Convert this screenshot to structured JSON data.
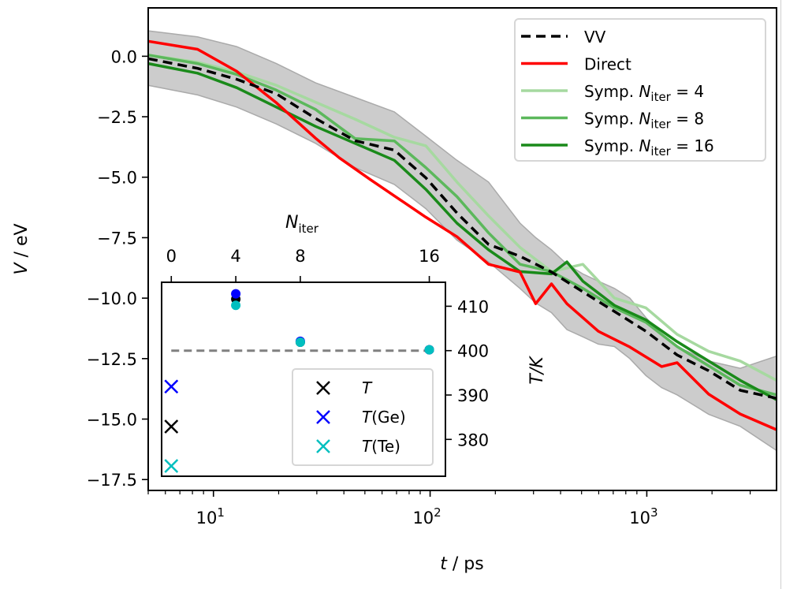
{
  "chart_data": {
    "type": "line",
    "xscale": "log",
    "xlabel_italic": "t",
    "xlabel_rest": " / ps",
    "ylabel_italic": "V",
    "ylabel_rest": " / eV",
    "xlim": [
      5.0,
      3970
    ],
    "ylim": [
      -17.95,
      2.0
    ],
    "xticks": [
      {
        "value": 10,
        "base": "10",
        "exp": "1"
      },
      {
        "value": 100,
        "base": "10",
        "exp": "2"
      },
      {
        "value": 1000,
        "base": "10",
        "exp": "3"
      }
    ],
    "yticks": [
      {
        "value": 0.0,
        "label": "0.0"
      },
      {
        "value": -2.5,
        "label": "−2.5"
      },
      {
        "value": -5.0,
        "label": "−5.0"
      },
      {
        "value": -7.5,
        "label": "−7.5"
      },
      {
        "value": -10.0,
        "label": "−10.0"
      },
      {
        "value": -12.5,
        "label": "−12.5"
      },
      {
        "value": -15.0,
        "label": "−15.0"
      },
      {
        "value": -17.5,
        "label": "−17.5"
      }
    ],
    "band": {
      "name": "VV spread",
      "color": "#cccccc",
      "t": [
        5.0,
        8.45,
        12.8,
        19.5,
        29.6,
        45.0,
        68.4,
        95.5,
        133,
        186,
        260,
        307,
        363,
        428,
        507,
        597,
        709,
        835,
        991,
        1170,
        1380,
        1930,
        2700,
        3970
      ],
      "upper": [
        1.05,
        0.8,
        0.4,
        -0.3,
        -1.1,
        -1.7,
        -2.3,
        -3.3,
        -4.3,
        -5.2,
        -6.9,
        -7.5,
        -8.0,
        -8.6,
        -9.0,
        -9.3,
        -9.6,
        -10.0,
        -10.8,
        -11.5,
        -12.0,
        -12.6,
        -12.9,
        -12.4
      ],
      "lower": [
        -1.2,
        -1.6,
        -2.1,
        -2.8,
        -3.6,
        -4.6,
        -5.3,
        -6.3,
        -7.6,
        -8.5,
        -9.6,
        -10.2,
        -10.6,
        -11.3,
        -11.6,
        -11.9,
        -12.0,
        -12.5,
        -13.2,
        -13.7,
        -14.0,
        -14.8,
        -15.3,
        -16.3
      ]
    },
    "series": [
      {
        "name": "VV",
        "color": "#000000",
        "dash": true,
        "opacity": 1,
        "t": [
          5.0,
          8.45,
          12.8,
          19.5,
          29.6,
          45.0,
          68.4,
          95.5,
          133,
          186,
          260,
          363,
          507,
          709,
          991,
          1380,
          1930,
          2700,
          3970
        ],
        "v": [
          -0.1,
          -0.5,
          -0.95,
          -1.55,
          -2.57,
          -3.49,
          -3.88,
          -5.02,
          -6.48,
          -7.78,
          -8.27,
          -8.92,
          -9.74,
          -10.55,
          -11.37,
          -12.35,
          -13.0,
          -13.81,
          -14.14
        ]
      },
      {
        "name": "Direct",
        "color": "#ff0000",
        "dash": false,
        "opacity": 1,
        "t": [
          5.0,
          8.45,
          12.8,
          19.5,
          29.6,
          38.1,
          53.2,
          68.4,
          95.5,
          133,
          186,
          260,
          307,
          363,
          428,
          597,
          835,
          1170,
          1380,
          1930,
          2700,
          3970
        ],
        "v": [
          0.62,
          0.29,
          -0.62,
          -1.92,
          -3.39,
          -4.2,
          -5.11,
          -5.77,
          -6.65,
          -7.46,
          -8.6,
          -8.92,
          -10.23,
          -9.41,
          -10.23,
          -11.37,
          -12.02,
          -12.83,
          -12.67,
          -13.97,
          -14.79,
          -15.44
        ]
      },
      {
        "name": "Symp. N_iter = 4",
        "color": "#a6d9a0",
        "dash": false,
        "opacity": 1,
        "t": [
          5.0,
          8.45,
          12.8,
          19.5,
          29.6,
          45.0,
          68.4,
          95.5,
          133,
          186,
          260,
          363,
          507,
          709,
          991,
          1380,
          1930,
          2700,
          3970
        ],
        "v": [
          0.05,
          -0.25,
          -0.65,
          -1.2,
          -1.9,
          -2.6,
          -3.35,
          -3.7,
          -5.2,
          -6.6,
          -7.9,
          -8.9,
          -8.6,
          -10.0,
          -10.4,
          -11.5,
          -12.2,
          -12.6,
          -13.4
        ]
      },
      {
        "name": "Symp. N_iter = 8",
        "color": "#5cb85c",
        "dash": false,
        "opacity": 1,
        "t": [
          5.0,
          8.45,
          12.8,
          19.5,
          29.6,
          45.0,
          68.4,
          95.5,
          133,
          186,
          260,
          363,
          507,
          709,
          991,
          1380,
          1930,
          2700,
          3970
        ],
        "v": [
          0.05,
          -0.3,
          -0.75,
          -1.4,
          -2.2,
          -3.4,
          -3.5,
          -4.6,
          -5.8,
          -7.3,
          -8.6,
          -8.9,
          -9.6,
          -10.4,
          -11.0,
          -12.0,
          -12.8,
          -13.6,
          -14.0
        ]
      },
      {
        "name": "Symp. N_iter = 16",
        "color": "#1a8a1a",
        "dash": false,
        "opacity": 1,
        "t": [
          5.0,
          8.45,
          12.8,
          19.5,
          29.6,
          45.0,
          68.4,
          95.5,
          133,
          186,
          260,
          363,
          428,
          507,
          709,
          991,
          1380,
          1930,
          2700,
          3970
        ],
        "v": [
          -0.3,
          -0.7,
          -1.3,
          -2.1,
          -2.9,
          -3.6,
          -4.3,
          -5.5,
          -6.9,
          -8.0,
          -8.9,
          -9.0,
          -8.5,
          -9.3,
          -10.3,
          -10.9,
          -11.8,
          -12.6,
          -13.4,
          -14.2
        ]
      }
    ],
    "legend": {
      "position": "top-right",
      "entries": [
        {
          "prefix": "VV",
          "italic": "",
          "sub": "",
          "suffix": ""
        },
        {
          "prefix": "Direct",
          "italic": "",
          "sub": "",
          "suffix": ""
        },
        {
          "prefix": "Symp. ",
          "italic": "N",
          "sub": "iter",
          "suffix": " = 4"
        },
        {
          "prefix": "Symp. ",
          "italic": "N",
          "sub": "iter",
          "suffix": " = 8"
        },
        {
          "prefix": "Symp. ",
          "italic": "N",
          "sub": "iter",
          "suffix": " = 16"
        }
      ]
    },
    "inset": {
      "type": "scatter",
      "xlabel_italic": "N",
      "xlabel_sub": "iter",
      "ylabel": "T/K",
      "xlim": [
        -0.6,
        17.0
      ],
      "ylim": [
        371.7,
        415.4
      ],
      "xticks": [
        0,
        4,
        8,
        16
      ],
      "yticks": [
        410,
        400,
        390,
        380
      ],
      "reference_line": {
        "value": 400,
        "color": "#808080",
        "dash": true
      },
      "points": [
        {
          "series": "T",
          "n": 4,
          "T": 411.6,
          "color": "#000000",
          "marker": "o"
        },
        {
          "series": "T(Ge)",
          "n": 4,
          "T": 412.8,
          "color": "#0000ff",
          "marker": "o"
        },
        {
          "series": "T(Te)",
          "n": 4,
          "T": 410.2,
          "color": "#00bfbf",
          "marker": "o"
        },
        {
          "series": "T",
          "n": 8,
          "T": 401.9,
          "color": "#000000",
          "marker": "o"
        },
        {
          "series": "T(Ge)",
          "n": 8,
          "T": 402.1,
          "color": "#0000ff",
          "marker": "o"
        },
        {
          "series": "T(Te)",
          "n": 8,
          "T": 401.9,
          "color": "#00bfbf",
          "marker": "o"
        },
        {
          "series": "T",
          "n": 16,
          "T": 400.2,
          "color": "#000000",
          "marker": "o"
        },
        {
          "series": "T(Ge)",
          "n": 16,
          "T": 400.2,
          "color": "#0000ff",
          "marker": "o"
        },
        {
          "series": "T(Te)",
          "n": 16,
          "T": 400.2,
          "color": "#00bfbf",
          "marker": "o"
        },
        {
          "series": "T(Ge)",
          "n": 0,
          "T": 391.9,
          "color": "#0000ff",
          "marker": "x"
        },
        {
          "series": "T",
          "n": 0,
          "T": 382.9,
          "color": "#000000",
          "marker": "x"
        },
        {
          "series": "T(Te)",
          "n": 0,
          "T": 374.0,
          "color": "#00bfbf",
          "marker": "x"
        }
      ],
      "legend": {
        "position": "lower-right",
        "entries": [
          {
            "italic": "T",
            "rest": "",
            "color": "#000000"
          },
          {
            "italic": "T",
            "rest": "(Ge)",
            "color": "#0000ff"
          },
          {
            "italic": "T",
            "rest": "(Te)",
            "color": "#00bfbf"
          }
        ]
      }
    }
  }
}
